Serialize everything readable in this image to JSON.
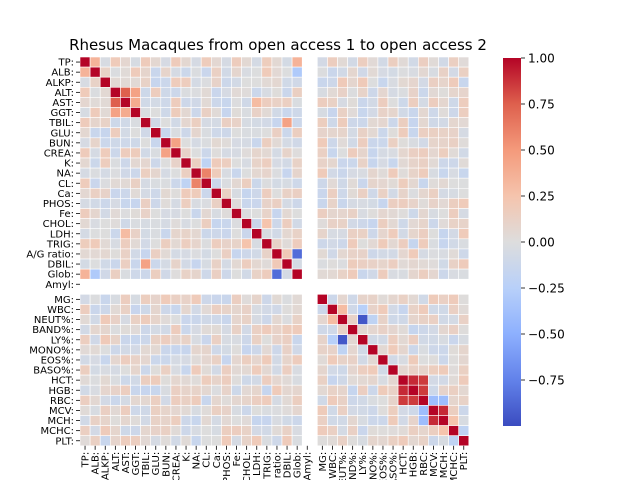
{
  "chart_data": {
    "type": "heatmap",
    "title": "Rhesus Macaques from open access 1 to open access 2",
    "labels": [
      "TP:",
      "ALB:",
      "ALKP:",
      "ALT:",
      "AST:",
      "GGT:",
      "TBIL:",
      "GLU:",
      "BUN:",
      "CREA:",
      "K:",
      "NA:",
      "CL:",
      "Ca:",
      "PHOS:",
      "Fe:",
      "CHOL:",
      "LDH:",
      "TRIG:",
      "A/G ratio:",
      "DBIL:",
      "Glob:",
      "Amyl:",
      "MG:",
      "WBC:",
      "NEUT%:",
      "BAND%:",
      "LY%:",
      "MONO%:",
      "EOS%:",
      "BASO%:",
      "HCT:",
      "HGB:",
      "RBC:",
      "MCV:",
      "MCH:",
      "MCHC:",
      "PLT:"
    ],
    "gap_row_after": "Amyl:",
    "gap_col_after": "Amyl:",
    "colormap": "coolwarm",
    "vmin": -1.0,
    "vmax": 1.0,
    "colorbar_ticks": [
      1.0,
      0.75,
      0.5,
      0.25,
      0.0,
      -0.25,
      -0.5,
      -0.75
    ],
    "colorbar_tick_labels": [
      "1.00",
      "0.75",
      "0.50",
      "0.25",
      "0.00",
      "−0.25",
      "−0.50",
      "−0.75"
    ],
    "blank_label": "Amyl:",
    "diagonal": 1.0,
    "strong_pairs": [
      {
        "a": "ALT:",
        "b": "AST:",
        "value": 0.75
      },
      {
        "a": "ALT:",
        "b": "GGT:",
        "value": 0.45
      },
      {
        "a": "AST:",
        "b": "GGT:",
        "value": 0.4
      },
      {
        "a": "TP:",
        "b": "ALB:",
        "value": 0.35
      },
      {
        "a": "TP:",
        "b": "Glob:",
        "value": 0.35
      },
      {
        "a": "BUN:",
        "b": "CREA:",
        "value": 0.45
      },
      {
        "a": "NA:",
        "b": "CL:",
        "value": 0.6
      },
      {
        "a": "K:",
        "b": "CL:",
        "value": -0.2
      },
      {
        "a": "TBIL:",
        "b": "DBIL:",
        "value": 0.45
      },
      {
        "a": "A/G ratio:",
        "b": "DBIL:",
        "value": 0.2
      },
      {
        "a": "A/G ratio:",
        "b": "Glob:",
        "value": -0.85
      },
      {
        "a": "ALB:",
        "b": "Glob:",
        "value": -0.3
      },
      {
        "a": "CHOL:",
        "b": "TRIG:",
        "value": 0.25
      },
      {
        "a": "LDH:",
        "b": "AST:",
        "value": 0.3
      },
      {
        "a": "NEUT%:",
        "b": "LY%:",
        "value": -0.95
      },
      {
        "a": "WBC:",
        "b": "NEUT%:",
        "value": 0.3
      },
      {
        "a": "WBC:",
        "b": "LY%:",
        "value": -0.25
      },
      {
        "a": "MONO%:",
        "b": "NEUT%:",
        "value": -0.2
      },
      {
        "a": "HCT:",
        "b": "HGB:",
        "value": 0.9
      },
      {
        "a": "HCT:",
        "b": "RBC:",
        "value": 0.85
      },
      {
        "a": "HGB:",
        "b": "RBC:",
        "value": 0.85
      },
      {
        "a": "MCV:",
        "b": "MCH:",
        "value": 0.9
      },
      {
        "a": "MCV:",
        "b": "RBC:",
        "value": -0.4
      },
      {
        "a": "MCH:",
        "b": "RBC:",
        "value": -0.4
      },
      {
        "a": "MCHC:",
        "b": "MCV:",
        "value": 0.15
      },
      {
        "a": "MCHC:",
        "b": "MCH:",
        "value": 0.25
      },
      {
        "a": "PLT:",
        "b": "MCHC:",
        "value": -0.2
      }
    ]
  }
}
